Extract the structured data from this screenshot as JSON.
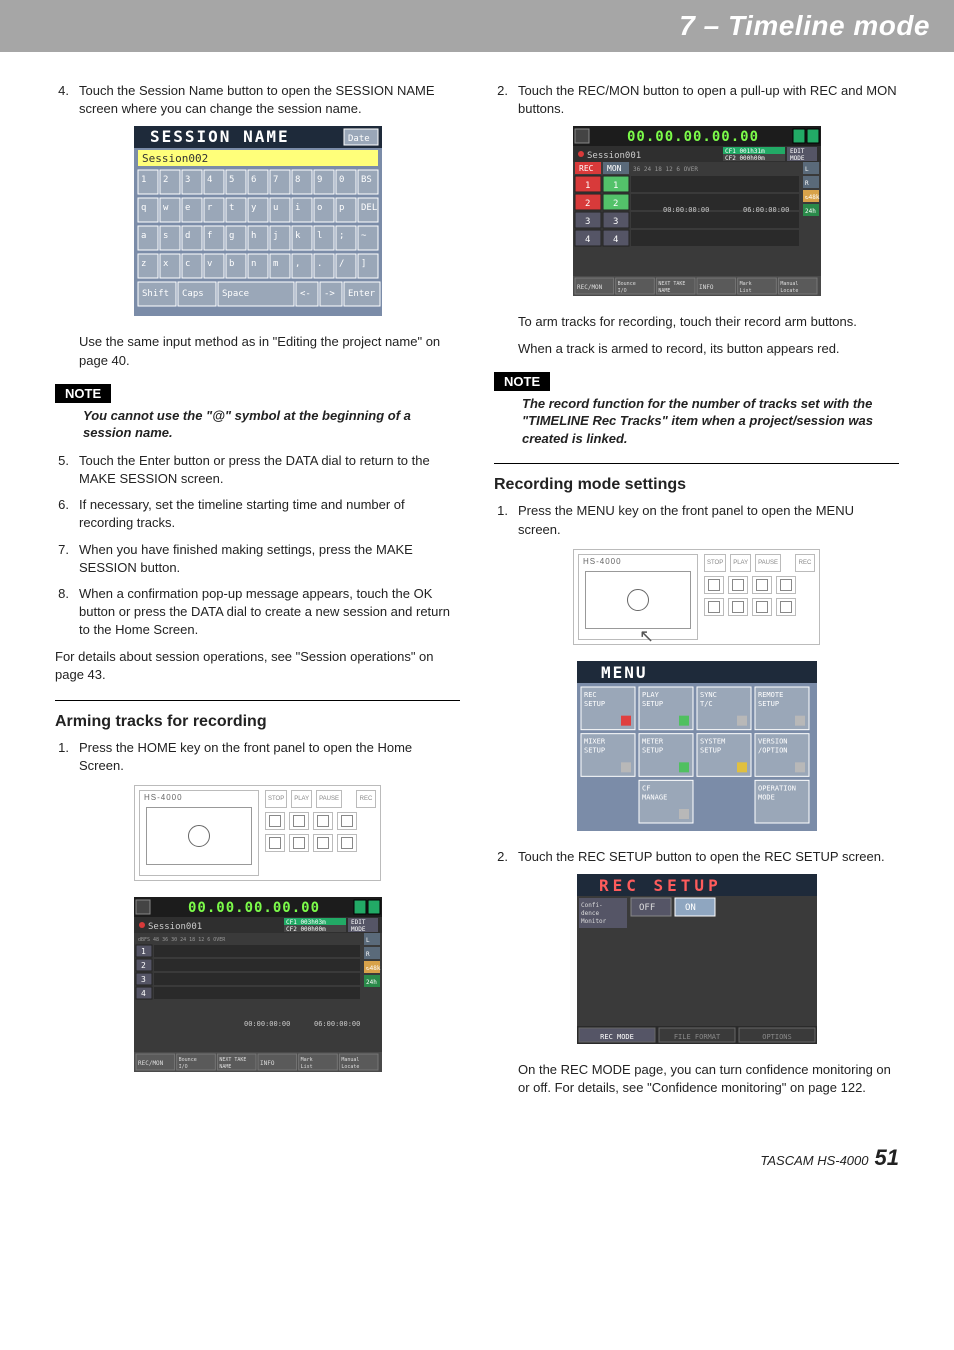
{
  "banner": {
    "title": "7 – Timeline mode"
  },
  "left": {
    "steps_a": [
      {
        "n": "4.",
        "t": "Touch the Session Name button to open the SESSION NAME screen where you can change the session name."
      }
    ],
    "session_name_fig": {
      "title": "SESSION NAME",
      "date_label": "Date",
      "input_value": "Session002",
      "bg": "#7b8ca8",
      "header_bg": "#1e2a3a",
      "title_color": "#ffffff",
      "input_bg": "#ffff7a",
      "key_bg": "#9aa7b8",
      "key_fg": "#ffffff",
      "rows": [
        [
          "1",
          "2",
          "3",
          "4",
          "5",
          "6",
          "7",
          "8",
          "9",
          "0",
          "BS"
        ],
        [
          "q",
          "w",
          "e",
          "r",
          "t",
          "y",
          "u",
          "i",
          "o",
          "p",
          "DEL"
        ],
        [
          "a",
          "s",
          "d",
          "f",
          "g",
          "h",
          "j",
          "k",
          "l",
          ";",
          "~"
        ],
        [
          "z",
          "x",
          "c",
          "v",
          "b",
          "n",
          "m",
          ",",
          ".",
          "/",
          "]"
        ]
      ],
      "bottom": [
        "Shift",
        "Caps",
        "Space",
        "<-",
        "->",
        "Enter"
      ]
    },
    "after_fig_a": "Use the same input method as in \"Editing the project name\" on page 40.",
    "note_label": "NOTE",
    "note_text": "You cannot use the \"@\" symbol at the beginning of a session name.",
    "steps_b": [
      {
        "n": "5.",
        "t": "Touch the Enter button or press the DATA dial to return to the MAKE SESSION screen."
      },
      {
        "n": "6.",
        "t": "If necessary, set the timeline starting time and number of recording tracks."
      },
      {
        "n": "7.",
        "t": "When you have finished making settings, press the MAKE SESSION button."
      },
      {
        "n": "8.",
        "t": "When a confirmation pop-up message appears, touch the OK button or press the DATA dial to create a new session and return to the Home Screen."
      }
    ],
    "para_details": "For details about session operations, see \"Session operations\" on page 43.",
    "h_arming": "Arming tracks for recording",
    "steps_c": [
      {
        "n": "1.",
        "t": "Press the HOME key on the front panel to open the Home Screen."
      }
    ],
    "hs_label": "HS-4000",
    "timeline_fig": {
      "bg": "#3a3a3a",
      "header_bg": "#1c1c1c",
      "timer": "00.00.00.00.00",
      "timer_color": "#7CFC4A",
      "red_bg": "#cc3030",
      "session": "Session001",
      "cf1": "CF1  003h03m",
      "cf2": "CF2  000h00m",
      "edit": "EDIT",
      "mode": "MODE",
      "labels_left": {
        "rows": [
          "1",
          "2",
          "3",
          "4"
        ],
        "dbline": "dBFS  48  36  30  24  18  12  6  OVER"
      },
      "badges_right": [
        "L",
        "R",
        "↻48k",
        "24h"
      ],
      "time_marks": {
        "left": "00:00:00:00",
        "right": "06:00:00:00"
      },
      "bottom": [
        "REC/MON",
        "Bounce I/O",
        "NEXT TAKE NAME",
        "INFO",
        "Mark List",
        "Manual Locate"
      ]
    }
  },
  "right": {
    "steps_a": [
      {
        "n": "2.",
        "t": "Touch the REC/MON button to open a pull-up with REC and MON buttons."
      }
    ],
    "recmon_fig": {
      "bg": "#3a3a3a",
      "header_bg": "#1c1c1c",
      "timer": "00.00.00.00.00",
      "timer_color": "#7CFC4A",
      "session": "Session001",
      "cf1": "CF1  001h31m",
      "cf2": "CF2  000h00m",
      "edit": "EDIT",
      "mode": "MODE",
      "rec_label": "REC",
      "mon_label": "MON",
      "red": "#d83a3a",
      "green": "#53c26a",
      "dbline": "36        24          18      12      6     OVER",
      "rows": [
        {
          "rec_on": true,
          "mon_on": true,
          "n": "1"
        },
        {
          "rec_on": true,
          "mon_on": true,
          "n": "2"
        },
        {
          "rec_on": false,
          "mon_on": false,
          "n": "3"
        },
        {
          "rec_on": false,
          "mon_on": false,
          "n": "4"
        }
      ],
      "badges_right": [
        "L",
        "R",
        "↻48k",
        "24h"
      ],
      "time_marks": {
        "left": "00:00:00:00",
        "right": "06:00:00:00"
      },
      "bottom": [
        "REC/MON",
        "Bounce I/O",
        "NEXT TAKE NAME",
        "INFO",
        "Mark List",
        "Manual Locate"
      ]
    },
    "after_fig_a": [
      "To arm tracks for recording, touch their record arm buttons.",
      "When a track is armed to record, its button appears red."
    ],
    "note_label": "NOTE",
    "note_text": "The record function for the number of tracks set with the \"TIMELINE Rec Tracks\" item when a project/session was created is linked.",
    "h_recmode": "Recording mode settings",
    "steps_b": [
      {
        "n": "1.",
        "t": "Press the MENU key on the front panel to open the MENU screen."
      }
    ],
    "hs_label": "HS-4000",
    "menu_fig": {
      "bg": "#7b8ca8",
      "header_bg": "#1e2a3a",
      "title": "MENU",
      "tile_bg": "#9aa7b8",
      "tile_fg": "#ffffff",
      "tiles": [
        [
          "REC SETUP",
          "red"
        ],
        [
          "PLAY SETUP",
          "green"
        ],
        [
          "SYNC T/C",
          "grey"
        ],
        [
          "REMOTE SETUP",
          "grey"
        ],
        [
          "MIXER SETUP",
          "grey"
        ],
        [
          "METER SETUP",
          "green"
        ],
        [
          "SYSTEM SETUP",
          "yellow"
        ],
        [
          "VERSION /OPTION",
          "grey"
        ],
        [
          "",
          ""
        ],
        [
          "CF MANAGE",
          "grey"
        ],
        [
          "",
          ""
        ],
        [
          "OPERATION MODE",
          ""
        ]
      ]
    },
    "steps_c": [
      {
        "n": "2.",
        "t": "Touch the REC SETUP button to open the REC SETUP screen."
      }
    ],
    "recsetup_fig": {
      "bg": "#3a3a3a",
      "header_bg": "#1e2a3a",
      "title": "REC SETUP",
      "title_color": "#ff5c5c",
      "row_label": "Confi- dence Monitor",
      "off": "OFF",
      "on": "ON",
      "on_bg": "#8fa6c0",
      "tabs": [
        "REC MODE",
        "FILE FORMAT",
        "OPTIONS"
      ]
    },
    "after_fig_b": "On the REC MODE page, you can turn confidence monitoring on or off. For details, see \"Confidence monitoring\" on page 122."
  },
  "footer": {
    "name": "TASCAM HS-4000",
    "page": "51"
  }
}
